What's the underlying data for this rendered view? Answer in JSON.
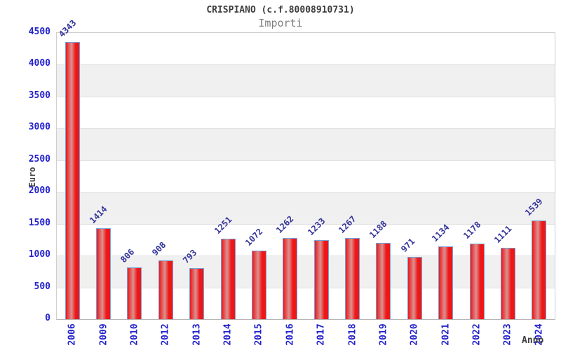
{
  "header": {
    "title": "CRISPIANO (c.f.80008910731)",
    "subtitle": "Importi"
  },
  "chart_data": {
    "type": "bar",
    "title": "CRISPIANO (c.f.80008910731)",
    "subtitle": "Importi",
    "xlabel": "Anno",
    "ylabel": "Euro",
    "categories": [
      "2006",
      "2009",
      "2010",
      "2012",
      "2013",
      "2014",
      "2015",
      "2016",
      "2017",
      "2018",
      "2019",
      "2020",
      "2021",
      "2022",
      "2023",
      "2024"
    ],
    "values": [
      4343,
      1414,
      806,
      908,
      793,
      1251,
      1072,
      1262,
      1233,
      1267,
      1188,
      971,
      1134,
      1178,
      1111,
      1539
    ],
    "ylim": [
      0,
      4500
    ],
    "yticks": [
      0,
      500,
      1000,
      1500,
      2000,
      2500,
      3000,
      3500,
      4000,
      4500
    ],
    "grid": "horizontal alternating bands every 500",
    "legend": "none",
    "colors": {
      "tick_label": "#2222cc",
      "value_label": "#333399",
      "bar_edge": "#74a2d9",
      "bar_red": "#ee1717",
      "bar_highlight": "#db9292",
      "band_gray": "#f0f0f0",
      "plot_border": "#cfcfcf",
      "title_text": "#3d3d3d",
      "subtitle_text": "#7f7f7f",
      "axis_title_text": "#404040"
    }
  }
}
